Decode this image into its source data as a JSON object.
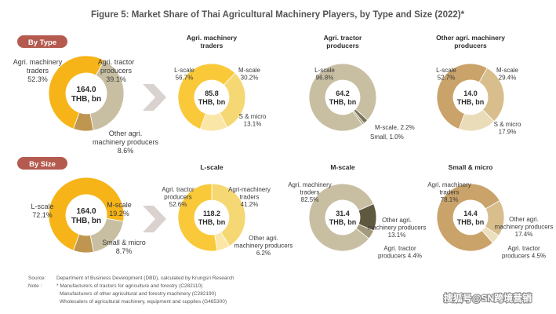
{
  "title": "Figure 5: Market Share of Thai Agricultural Machinery Players, by Type and Size (2022)*",
  "sections": {
    "by_type": "By Type",
    "by_size": "By Size"
  },
  "colors": {
    "agri_machinery": "#F6B418",
    "tractor": "#C8BFA3",
    "other_agri": "#BE9650",
    "l_scale_light": "#F9C93A",
    "m_scale_light": "#F5D873",
    "small_light": "#FAE6A6",
    "tractor_dark1": "#7C7456",
    "tractor_dark2": "#A69F80",
    "other_l": "#C9A36A",
    "other_m": "#D9BE8D",
    "other_s": "#EBDCB9",
    "m_other": "#5F5840",
    "m_tractor": "#A29A7C",
    "s_other": "#ECDFBE",
    "s_tractor": "#F5EEDC",
    "pill": "#B45A4E",
    "chevron": "#D9D2CF"
  },
  "chart_data": [
    {
      "type": "pie",
      "id": "by-type-main",
      "center": [
        "164.0",
        "THB, bn"
      ],
      "slices": [
        {
          "name": "Agri. machinery traders",
          "value": 52.3
        },
        {
          "name": "Agri. tractor producers",
          "value": 39.1
        },
        {
          "name": "Other agri. machinery producers",
          "value": 8.6
        }
      ],
      "labels": [
        {
          "lines": [
            "Agri. machinery",
            "traders",
            "52.3%"
          ]
        },
        {
          "lines": [
            "Agri. tractor",
            "producers",
            "39.1%"
          ]
        },
        {
          "lines": [
            "Other agri.",
            "machinery producers",
            "8.6%"
          ]
        }
      ]
    },
    {
      "type": "pie",
      "id": "agri-machinery-traders",
      "header": [
        "Agri. machinery",
        "traders"
      ],
      "center": [
        "85.8",
        "THB, bn"
      ],
      "slices": [
        {
          "name": "L-scale",
          "value": 56.7
        },
        {
          "name": "M-scale",
          "value": 30.2
        },
        {
          "name": "S & micro",
          "value": 13.1
        }
      ],
      "labels": [
        {
          "lines": [
            "L-scale",
            "56.7%"
          ]
        },
        {
          "lines": [
            "M-scale",
            "30.2%"
          ]
        },
        {
          "lines": [
            "S & micro",
            "13.1%"
          ]
        }
      ]
    },
    {
      "type": "pie",
      "id": "agri-tractor-producers",
      "header": [
        "Agri. tractor",
        "producers"
      ],
      "center": [
        "64.2",
        "THB, bn"
      ],
      "slices": [
        {
          "name": "L-scale",
          "value": 96.8
        },
        {
          "name": "M-scale",
          "value": 2.2
        },
        {
          "name": "Small",
          "value": 1.0
        }
      ],
      "labels": [
        {
          "lines": [
            "L-scale",
            "96.8%"
          ]
        },
        {
          "lines": [
            "M-scale, 2.2%"
          ]
        },
        {
          "lines": [
            "Small, 1.0%"
          ]
        }
      ]
    },
    {
      "type": "pie",
      "id": "other-agri-producers",
      "header": [
        "Other agri. machinery",
        "producers"
      ],
      "center": [
        "14.0",
        "THB, bn"
      ],
      "slices": [
        {
          "name": "L-scale",
          "value": 52.7
        },
        {
          "name": "M-scale",
          "value": 29.4
        },
        {
          "name": "S & micro",
          "value": 17.9
        }
      ],
      "labels": [
        {
          "lines": [
            "L-scale",
            "52.7%"
          ]
        },
        {
          "lines": [
            "M-scale",
            "29.4%"
          ]
        },
        {
          "lines": [
            "S & micro",
            "17.9%"
          ]
        }
      ]
    },
    {
      "type": "pie",
      "id": "by-size-main",
      "center": [
        "164.0",
        "THB, bn"
      ],
      "slices": [
        {
          "name": "L-scale",
          "value": 72.1
        },
        {
          "name": "M-scale",
          "value": 19.2
        },
        {
          "name": "Small & micro",
          "value": 8.7
        }
      ],
      "labels": [
        {
          "lines": [
            "L-scale",
            "72.1%"
          ]
        },
        {
          "lines": [
            "M-scale",
            "19.2%"
          ]
        },
        {
          "lines": [
            "Small & micro",
            "8.7%"
          ]
        }
      ]
    },
    {
      "type": "pie",
      "id": "l-scale",
      "header": [
        "L-scale"
      ],
      "center": [
        "118.2",
        "THB, bn"
      ],
      "slices": [
        {
          "name": "Agri-machinery traders",
          "value": 41.2
        },
        {
          "name": "Other agri. machinery producers",
          "value": 6.2
        },
        {
          "name": "Agri. tractor producers",
          "value": 52.6
        }
      ],
      "labels": [
        {
          "lines": [
            "Agri-machinery",
            "traders",
            "41.2%"
          ]
        },
        {
          "lines": [
            "Other agri.",
            "machinery producers",
            "6.2%"
          ]
        },
        {
          "lines": [
            "Agri. tractor",
            "producers",
            "52.6%"
          ]
        }
      ]
    },
    {
      "type": "pie",
      "id": "m-scale",
      "header": [
        "M-scale"
      ],
      "center": [
        "31.4",
        "THB, bn"
      ],
      "slices": [
        {
          "name": "Other agri. machinery producers",
          "value": 13.1
        },
        {
          "name": "Agri. tractor producers",
          "value": 4.4
        },
        {
          "name": "Agri. machinery traders",
          "value": 82.5
        }
      ],
      "labels": [
        {
          "lines": [
            "Other agri.",
            "machinery producers",
            "13.1%"
          ]
        },
        {
          "lines": [
            "Agri. tractor",
            "producers 4.4%"
          ]
        },
        {
          "lines": [
            "Agri. machinery",
            "traders",
            "82.5%"
          ]
        }
      ]
    },
    {
      "type": "pie",
      "id": "small-micro",
      "header": [
        "Small & micro"
      ],
      "center": [
        "14.4",
        "THB, bn"
      ],
      "slices": [
        {
          "name": "Other agri. machinery producers",
          "value": 17.4
        },
        {
          "name": "Agri. tractor producers",
          "value": 4.5
        },
        {
          "name": "Agri. machinery traders",
          "value": 78.1
        }
      ],
      "labels": [
        {
          "lines": [
            "Other agri.",
            "machinery producers",
            "17.4%"
          ]
        },
        {
          "lines": [
            "Agri. tractor",
            "producers 4.5%"
          ]
        },
        {
          "lines": [
            "Agri. machinery",
            "traders",
            "78.1%"
          ]
        }
      ]
    }
  ],
  "footer": {
    "source_label": "Source:",
    "source_text": "Department of Business Development (DBD), calculated by Krungsri Research",
    "note_label": "Note :",
    "note_lines": [
      "* Manufacturers of tractors for agriculture and forestry (C282110)",
      "Manufacturers of other agricultural and forestry machinery (C282190)",
      "Wholesalers of agricultural machinery, equipment and supplies (G465300)"
    ]
  },
  "watermark": "搜狐号@SN跨境营销"
}
